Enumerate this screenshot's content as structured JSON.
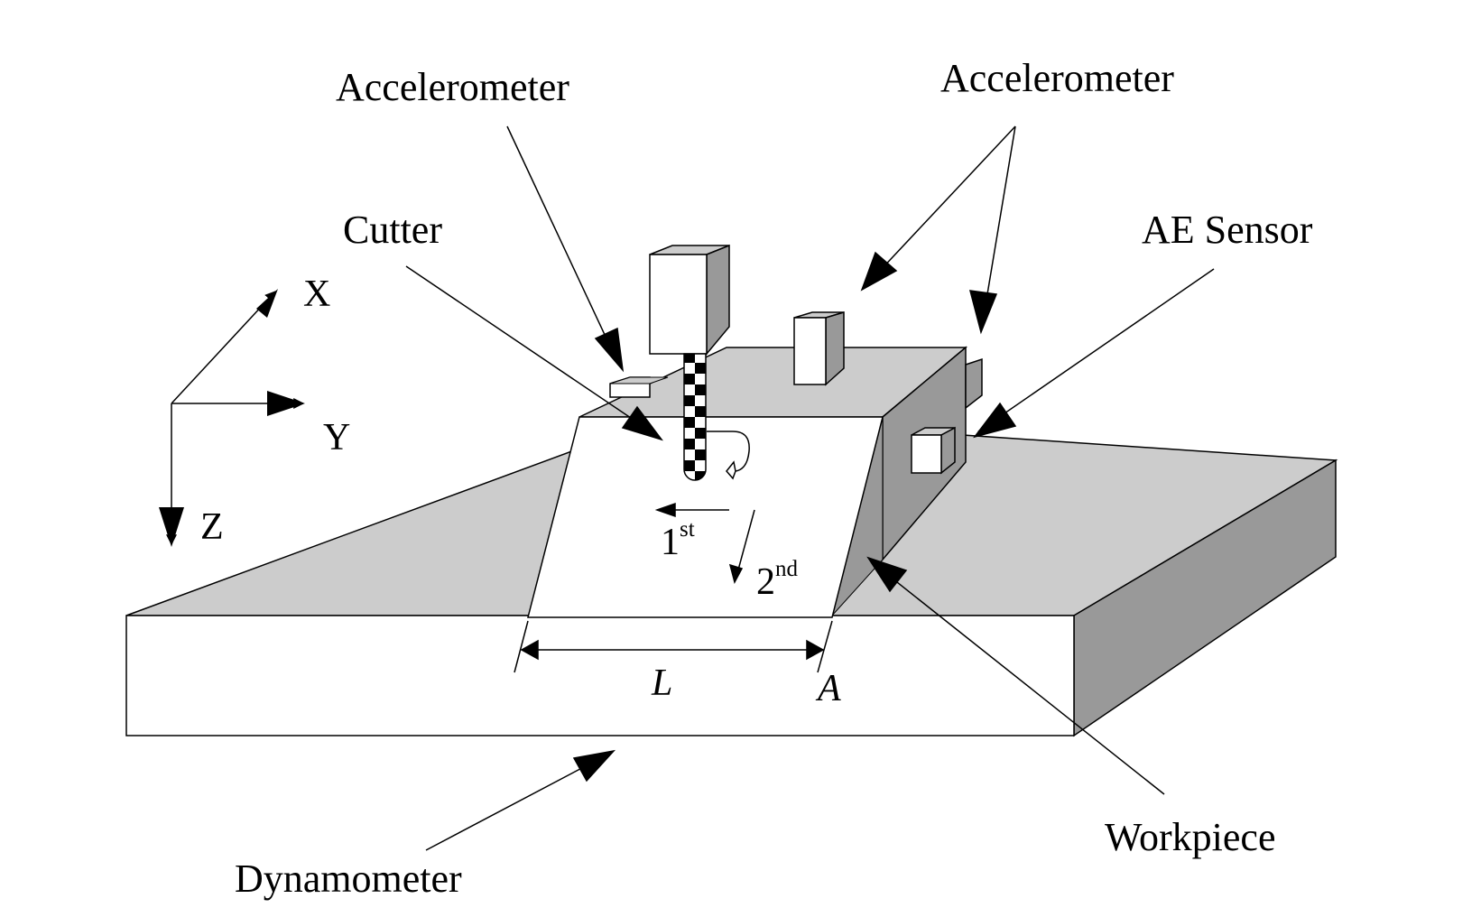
{
  "labels": {
    "accelerometer_left": "Accelerometer",
    "accelerometer_right": "Accelerometer",
    "cutter": "Cutter",
    "ae_sensor": "AE Sensor",
    "workpiece": "Workpiece",
    "dynamometer": "Dynamometer"
  },
  "axes": {
    "x": "X",
    "y": "Y",
    "z": "Z"
  },
  "passes": {
    "first_num": "1",
    "first_sup": "st",
    "second_num": "2",
    "second_sup": "nd"
  },
  "dimensions": {
    "length": "L",
    "angle": "A"
  },
  "colors": {
    "light_face": "#cccccc",
    "dark_face": "#999999",
    "front_face": "#ffffff",
    "stroke": "#000000"
  }
}
